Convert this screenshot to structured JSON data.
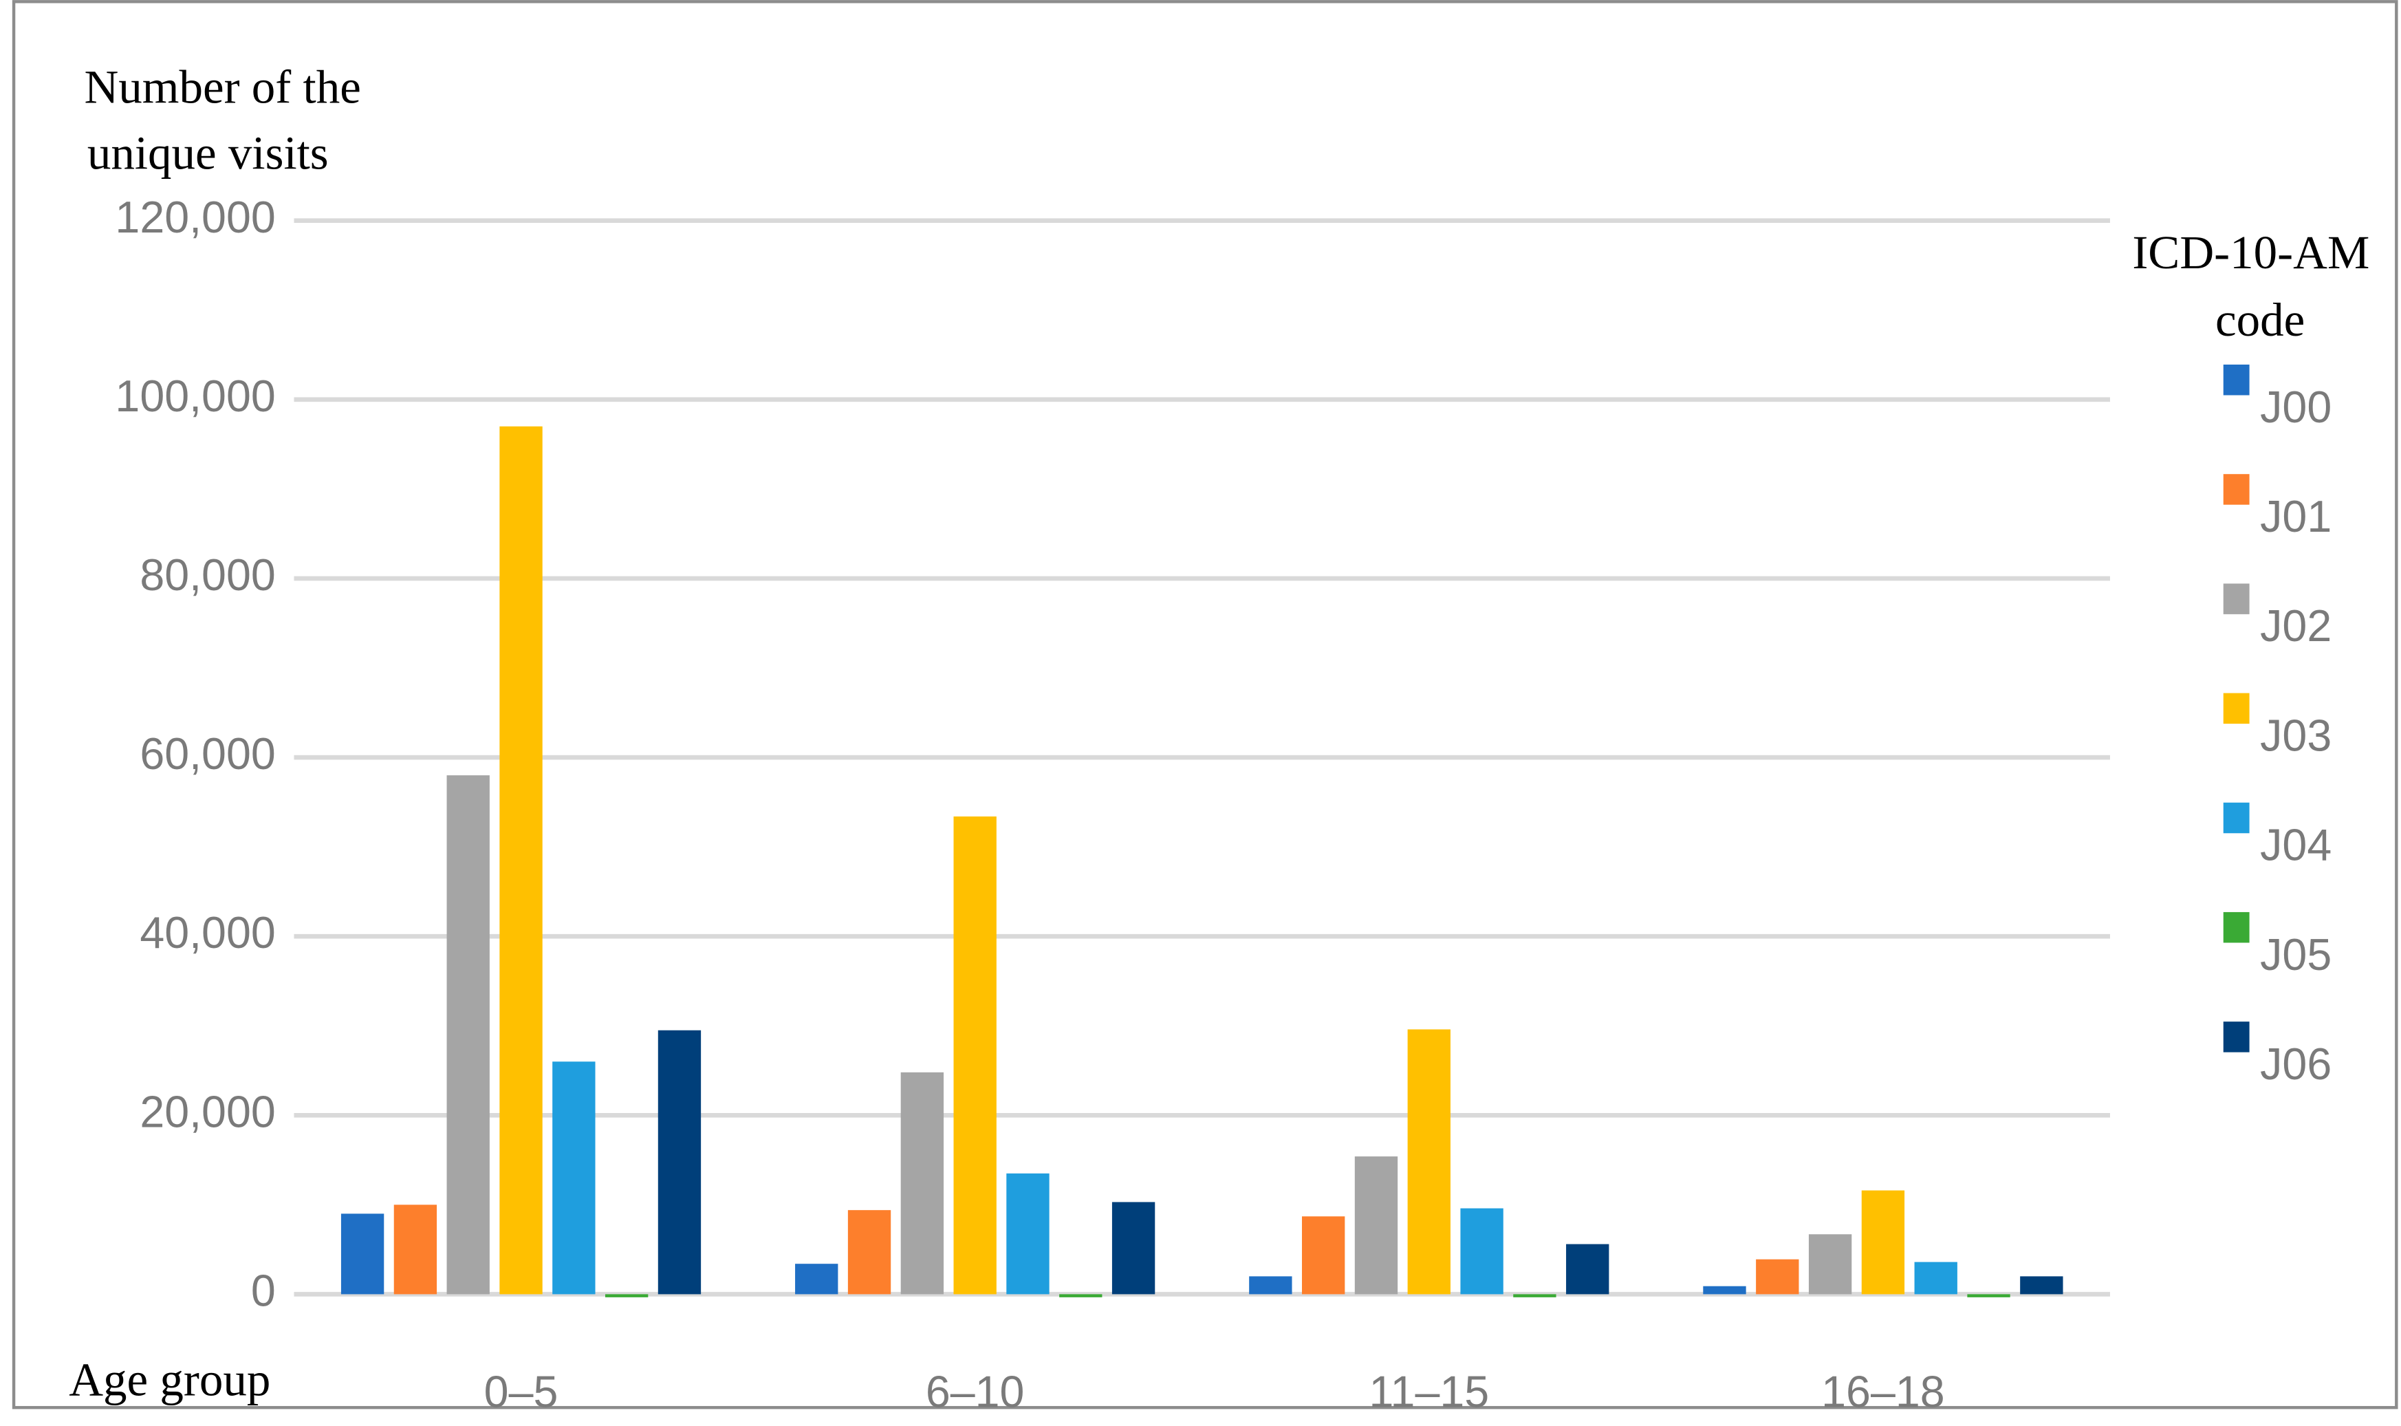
{
  "chart_data": {
    "type": "bar",
    "ylabel": [
      "Number of the",
      "unique visits"
    ],
    "xlabel": "Age group",
    "legend_title": [
      "ICD-10-AM",
      "code"
    ],
    "categories": [
      "0–5",
      "6–10",
      "11–15",
      "16–18"
    ],
    "series": [
      {
        "name": "J00",
        "color": "#1f6fc5",
        "values": [
          9000,
          3400,
          2000,
          900
        ]
      },
      {
        "name": "J01",
        "color": "#fd7f2c",
        "values": [
          10000,
          9400,
          8700,
          3900
        ]
      },
      {
        "name": "J02",
        "color": "#a5a5a5",
        "values": [
          58000,
          24800,
          15400,
          6700
        ]
      },
      {
        "name": "J03",
        "color": "#ffc000",
        "values": [
          97000,
          53400,
          29600,
          11600
        ]
      },
      {
        "name": "J04",
        "color": "#1f9ede",
        "values": [
          26000,
          13500,
          9600,
          3600
        ]
      },
      {
        "name": "J05",
        "color": "#3aaa35",
        "values": [
          300,
          0,
          0,
          0
        ]
      },
      {
        "name": "J06",
        "color": "#003f7a",
        "values": [
          29500,
          10300,
          5600,
          2000
        ]
      }
    ],
    "ylim": [
      0,
      120000
    ],
    "yticks": [
      0,
      {
        "value": 20000,
        "label": "20,000"
      },
      {
        "value": 40000,
        "label": "40,000"
      },
      {
        "value": 60000,
        "label": "60,000"
      },
      {
        "value": 80000,
        "label": "80,000"
      },
      {
        "value": 100000,
        "label": "100,000"
      },
      {
        "value": 120000,
        "label": "120,000"
      }
    ],
    "grid": true,
    "legend": "right"
  }
}
